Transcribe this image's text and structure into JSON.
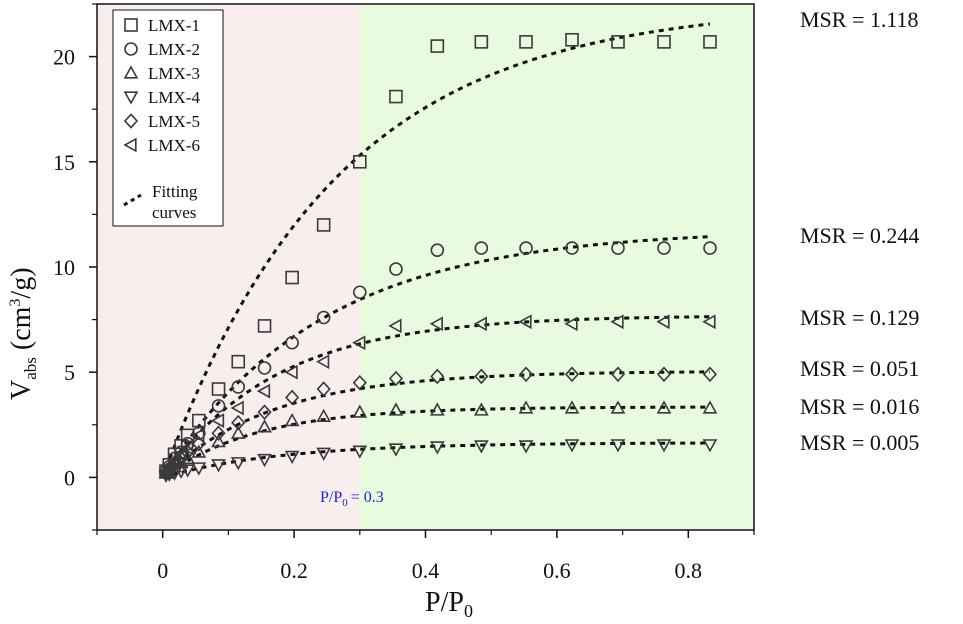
{
  "chart_data": {
    "type": "scatter",
    "xlabel": "P/P",
    "xlabel_sub": "0",
    "ylabel_main": "V",
    "ylabel_sub": "abs",
    "ylabel_unit_a": " (cm",
    "ylabel_sup": "3",
    "ylabel_unit_b": "/g)",
    "xlim": [
      -0.1,
      0.9
    ],
    "ylim": [
      -2.5,
      22.5
    ],
    "xticks": [
      0,
      0.2,
      0.4,
      0.6,
      0.8
    ],
    "xtick_labels": [
      "0",
      "0.2",
      "0.4",
      "0.6",
      "0.8"
    ],
    "yticks": [
      0,
      5,
      10,
      15,
      20
    ],
    "ytick_labels": [
      "0",
      "5",
      "10",
      "15",
      "20"
    ],
    "regions": [
      {
        "x_from": -0.1,
        "x_to": 0.3,
        "color": "#f8eeee"
      },
      {
        "x_from": 0.3,
        "x_to": 0.9,
        "color": "#e8fbdf"
      }
    ],
    "annotation": {
      "text_main": "P/P",
      "text_sub": "0",
      "text_tail": "= 0.3",
      "x": 0.3,
      "color": "#2222cc"
    },
    "legend": {
      "position": "top-left",
      "fit_label_line1": "Fitting",
      "fit_label_line2": "curves"
    },
    "series": [
      {
        "name": "LMX-1",
        "marker": "square",
        "x": [
          0.005,
          0.01,
          0.018,
          0.028,
          0.038,
          0.055,
          0.085,
          0.115,
          0.155,
          0.197,
          0.245,
          0.3,
          0.355,
          0.418,
          0.485,
          0.553,
          0.623,
          0.693,
          0.763,
          0.833
        ],
        "y": [
          0.3,
          0.6,
          1.1,
          1.5,
          2.0,
          2.7,
          4.2,
          5.5,
          7.2,
          9.5,
          12.0,
          15.0,
          18.1,
          20.5,
          20.7,
          20.7,
          20.8,
          20.7,
          20.7,
          20.7
        ],
        "fit_k": 3.8,
        "fit_max": 22.5,
        "msr": "MSR = 1.118"
      },
      {
        "name": "LMX-2",
        "marker": "circle",
        "x": [
          0.005,
          0.01,
          0.018,
          0.028,
          0.038,
          0.055,
          0.085,
          0.115,
          0.155,
          0.197,
          0.245,
          0.3,
          0.355,
          0.418,
          0.485,
          0.553,
          0.623,
          0.693,
          0.763,
          0.833
        ],
        "y": [
          0.3,
          0.5,
          0.9,
          1.2,
          1.6,
          2.1,
          3.4,
          4.3,
          5.2,
          6.4,
          7.6,
          8.8,
          9.9,
          10.8,
          10.9,
          10.9,
          10.9,
          10.9,
          10.9,
          10.9
        ],
        "fit_k": 4.2,
        "fit_max": 11.8,
        "msr": "MSR = 0.244"
      },
      {
        "name": "LMX-3",
        "marker": "triangle-up",
        "x": [
          0.005,
          0.01,
          0.018,
          0.028,
          0.038,
          0.055,
          0.085,
          0.115,
          0.155,
          0.197,
          0.245,
          0.3,
          0.355,
          0.418,
          0.485,
          0.553,
          0.623,
          0.693,
          0.763,
          0.833
        ],
        "y": [
          0.2,
          0.3,
          0.5,
          0.7,
          0.9,
          1.2,
          1.7,
          2.1,
          2.4,
          2.7,
          2.9,
          3.1,
          3.2,
          3.2,
          3.2,
          3.3,
          3.3,
          3.3,
          3.3,
          3.3
        ],
        "fit_k": 7.0,
        "fit_max": 3.35,
        "msr": "MSR = 0.016"
      },
      {
        "name": "LMX-4",
        "marker": "triangle-down",
        "x": [
          0.005,
          0.01,
          0.018,
          0.028,
          0.038,
          0.055,
          0.085,
          0.115,
          0.155,
          0.197,
          0.245,
          0.3,
          0.355,
          0.418,
          0.485,
          0.553,
          0.623,
          0.693,
          0.763,
          0.833
        ],
        "y": [
          0.1,
          0.15,
          0.2,
          0.3,
          0.35,
          0.45,
          0.6,
          0.7,
          0.85,
          1.0,
          1.15,
          1.25,
          1.35,
          1.45,
          1.5,
          1.5,
          1.55,
          1.55,
          1.55,
          1.55
        ],
        "fit_k": 5.5,
        "fit_max": 1.65,
        "msr": "MSR = 0.005"
      },
      {
        "name": "LMX-5",
        "marker": "diamond",
        "x": [
          0.005,
          0.01,
          0.018,
          0.028,
          0.038,
          0.055,
          0.085,
          0.115,
          0.155,
          0.197,
          0.245,
          0.3,
          0.355,
          0.418,
          0.485,
          0.553,
          0.623,
          0.693,
          0.763,
          0.833
        ],
        "y": [
          0.2,
          0.4,
          0.7,
          0.9,
          1.2,
          1.6,
          2.1,
          2.6,
          3.1,
          3.8,
          4.2,
          4.5,
          4.7,
          4.8,
          4.8,
          4.9,
          4.9,
          4.9,
          4.9,
          4.9
        ],
        "fit_k": 6.0,
        "fit_max": 5.05,
        "msr": "MSR = 0.051"
      },
      {
        "name": "LMX-6",
        "marker": "triangle-left",
        "x": [
          0.005,
          0.01,
          0.018,
          0.028,
          0.038,
          0.055,
          0.085,
          0.115,
          0.155,
          0.197,
          0.245,
          0.3,
          0.355,
          0.418,
          0.485,
          0.553,
          0.623,
          0.693,
          0.763,
          0.833
        ],
        "y": [
          0.3,
          0.5,
          0.8,
          1.1,
          1.4,
          2.0,
          2.7,
          3.3,
          4.1,
          5.0,
          5.5,
          6.4,
          7.2,
          7.3,
          7.3,
          7.4,
          7.3,
          7.4,
          7.4,
          7.4
        ],
        "fit_k": 5.8,
        "fit_max": 7.7,
        "msr": "MSR = 0.129"
      }
    ],
    "msr_label_order": [
      0,
      1,
      5,
      4,
      2,
      3
    ],
    "msr_label_y": [
      19,
      235,
      317,
      368,
      406,
      442
    ]
  }
}
